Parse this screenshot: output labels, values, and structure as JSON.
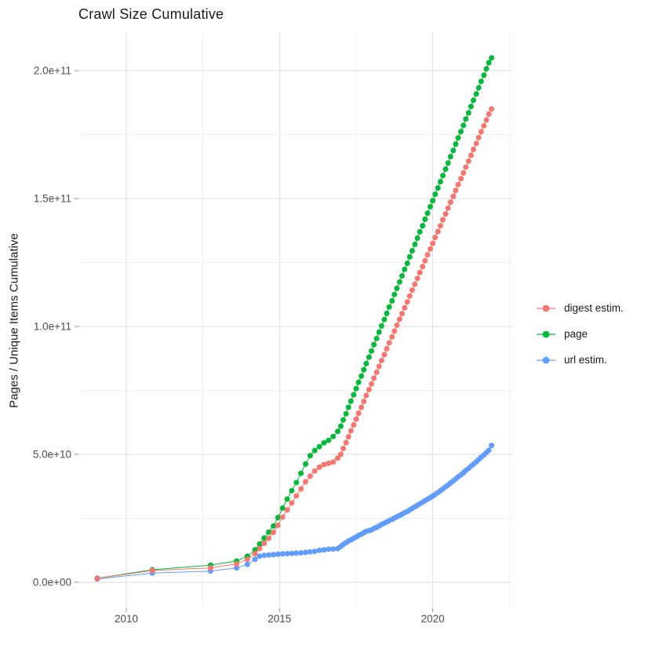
{
  "title": "Crawl Size Cumulative",
  "axes": {
    "y_title": "Pages / Unique Items Cumulative"
  },
  "chart_data": {
    "type": "scatter",
    "title": "Crawl Size Cumulative",
    "xlabel": "",
    "ylabel": "Pages / Unique Items Cumulative",
    "x_unit": "calendar year (decimal)",
    "y_unit": "count (values stored in billions, multiply by 1e9)",
    "xlim": [
      2008.4,
      2022.6
    ],
    "ylim_billions": [
      0,
      215
    ],
    "grid": "white background, light gray major and minor gridlines",
    "legend_position": "right",
    "x_major_ticks": {
      "years": [
        2010,
        2015,
        2020
      ],
      "labels": [
        "2010",
        "2015",
        "2020"
      ]
    },
    "x_minor_years": [
      2012.5,
      2017.5,
      2022.5
    ],
    "y_major_ticks": {
      "billions": [
        0,
        50,
        100,
        150,
        200
      ],
      "labels": [
        "0.0e+00",
        "5.0e+10",
        "1.0e+11",
        "1.5e+11",
        "2.0e+11"
      ]
    },
    "y_minor_billions": [
      25,
      75,
      125,
      175
    ],
    "marker": "filled circle, radius ~3.5px, joined by thin line of same color",
    "series": [
      {
        "name": "digest estim.",
        "color": "#F8766D",
        "points_year_billions": [
          [
            2009.05,
            1.5
          ],
          [
            2010.85,
            4.6
          ],
          [
            2012.75,
            5.6
          ],
          [
            2013.6,
            7.2
          ],
          [
            2013.95,
            9
          ],
          [
            2014.2,
            11.2
          ],
          [
            2014.35,
            13.2
          ],
          [
            2014.5,
            15.2
          ],
          [
            2014.65,
            17.2
          ],
          [
            2014.8,
            19.5
          ],
          [
            2014.95,
            22.3
          ],
          [
            2015.1,
            25.5
          ],
          [
            2015.25,
            28.3
          ],
          [
            2015.4,
            31
          ],
          [
            2015.55,
            33.8
          ],
          [
            2015.7,
            36.5
          ],
          [
            2015.85,
            39.3
          ],
          [
            2016,
            41.5
          ],
          [
            2016.15,
            43.5
          ],
          [
            2016.3,
            45
          ],
          [
            2016.45,
            46
          ],
          [
            2016.6,
            46.5
          ],
          [
            2016.75,
            47
          ],
          [
            2016.9,
            48.5
          ],
          [
            2017,
            50
          ],
          [
            2017.08,
            52.3
          ],
          [
            2017.17,
            54.6
          ],
          [
            2017.25,
            56.9
          ],
          [
            2017.33,
            59.2
          ],
          [
            2017.42,
            61.5
          ],
          [
            2017.5,
            63.8
          ],
          [
            2017.58,
            66.1
          ],
          [
            2017.67,
            68.4
          ],
          [
            2017.75,
            70.7
          ],
          [
            2017.83,
            73
          ],
          [
            2017.92,
            75.3
          ],
          [
            2018,
            77.5
          ],
          [
            2018.08,
            79.8
          ],
          [
            2018.17,
            82.1
          ],
          [
            2018.25,
            84.4
          ],
          [
            2018.33,
            86.7
          ],
          [
            2018.42,
            89
          ],
          [
            2018.5,
            91.3
          ],
          [
            2018.58,
            93.6
          ],
          [
            2018.67,
            95.9
          ],
          [
            2018.75,
            98.2
          ],
          [
            2018.83,
            100.5
          ],
          [
            2018.92,
            102.8
          ],
          [
            2019,
            105
          ],
          [
            2019.08,
            107.3
          ],
          [
            2019.17,
            109.6
          ],
          [
            2019.25,
            111.9
          ],
          [
            2019.33,
            114.2
          ],
          [
            2019.42,
            116.5
          ],
          [
            2019.5,
            118.8
          ],
          [
            2019.58,
            121.1
          ],
          [
            2019.67,
            123.4
          ],
          [
            2019.75,
            125.7
          ],
          [
            2019.83,
            128
          ],
          [
            2019.92,
            130.3
          ],
          [
            2020,
            132.5
          ],
          [
            2020.08,
            134.8
          ],
          [
            2020.17,
            137.1
          ],
          [
            2020.25,
            139.4
          ],
          [
            2020.33,
            141.7
          ],
          [
            2020.42,
            144
          ],
          [
            2020.5,
            146.3
          ],
          [
            2020.58,
            148.6
          ],
          [
            2020.67,
            150.9
          ],
          [
            2020.75,
            153.2
          ],
          [
            2020.83,
            155.5
          ],
          [
            2020.92,
            157.8
          ],
          [
            2021,
            160
          ],
          [
            2021.08,
            162.3
          ],
          [
            2021.17,
            164.6
          ],
          [
            2021.25,
            166.9
          ],
          [
            2021.33,
            169.2
          ],
          [
            2021.42,
            171.5
          ],
          [
            2021.5,
            173.8
          ],
          [
            2021.58,
            176.1
          ],
          [
            2021.67,
            178.4
          ],
          [
            2021.75,
            180.7
          ],
          [
            2021.83,
            183
          ],
          [
            2021.92,
            185
          ]
        ]
      },
      {
        "name": "page",
        "color": "#00BA38",
        "points_year_billions": [
          [
            2009.05,
            1.6
          ],
          [
            2010.85,
            4.9
          ],
          [
            2012.75,
            6.7
          ],
          [
            2013.6,
            8.3
          ],
          [
            2013.95,
            10.2
          ],
          [
            2014.2,
            12.7
          ],
          [
            2014.35,
            15
          ],
          [
            2014.5,
            17.3
          ],
          [
            2014.65,
            19.6
          ],
          [
            2014.8,
            22
          ],
          [
            2014.95,
            25.3
          ],
          [
            2015.1,
            29
          ],
          [
            2015.25,
            32.5
          ],
          [
            2015.4,
            35.8
          ],
          [
            2015.55,
            39
          ],
          [
            2015.7,
            42.6
          ],
          [
            2015.85,
            46.2
          ],
          [
            2016,
            49.5
          ],
          [
            2016.15,
            51.5
          ],
          [
            2016.3,
            53
          ],
          [
            2016.45,
            54.5
          ],
          [
            2016.6,
            55.5
          ],
          [
            2016.75,
            57
          ],
          [
            2016.9,
            59
          ],
          [
            2017,
            61
          ],
          [
            2017.08,
            63.5
          ],
          [
            2017.17,
            65.9
          ],
          [
            2017.25,
            68.4
          ],
          [
            2017.33,
            70.8
          ],
          [
            2017.42,
            73.3
          ],
          [
            2017.5,
            75.7
          ],
          [
            2017.58,
            78.2
          ],
          [
            2017.67,
            80.6
          ],
          [
            2017.75,
            83.1
          ],
          [
            2017.83,
            85.5
          ],
          [
            2017.92,
            88
          ],
          [
            2018,
            90.4
          ],
          [
            2018.08,
            92.9
          ],
          [
            2018.17,
            95.3
          ],
          [
            2018.25,
            97.8
          ],
          [
            2018.33,
            100.2
          ],
          [
            2018.42,
            102.7
          ],
          [
            2018.5,
            105.1
          ],
          [
            2018.58,
            107.6
          ],
          [
            2018.67,
            110
          ],
          [
            2018.75,
            112.5
          ],
          [
            2018.83,
            114.9
          ],
          [
            2018.92,
            117.4
          ],
          [
            2019,
            119.8
          ],
          [
            2019.08,
            122.3
          ],
          [
            2019.17,
            124.7
          ],
          [
            2019.25,
            127.2
          ],
          [
            2019.33,
            129.6
          ],
          [
            2019.42,
            132.1
          ],
          [
            2019.5,
            134.5
          ],
          [
            2019.58,
            137
          ],
          [
            2019.67,
            139.4
          ],
          [
            2019.75,
            141.9
          ],
          [
            2019.83,
            144.3
          ],
          [
            2019.92,
            146.8
          ],
          [
            2020,
            149.2
          ],
          [
            2020.08,
            151.7
          ],
          [
            2020.17,
            154.1
          ],
          [
            2020.25,
            156.6
          ],
          [
            2020.33,
            159
          ],
          [
            2020.42,
            161.5
          ],
          [
            2020.5,
            163.9
          ],
          [
            2020.58,
            166.4
          ],
          [
            2020.67,
            168.8
          ],
          [
            2020.75,
            171.3
          ],
          [
            2020.83,
            173.7
          ],
          [
            2020.92,
            176.2
          ],
          [
            2021,
            178.6
          ],
          [
            2021.08,
            181.1
          ],
          [
            2021.17,
            183.5
          ],
          [
            2021.25,
            186
          ],
          [
            2021.33,
            188.4
          ],
          [
            2021.42,
            190.9
          ],
          [
            2021.5,
            193.3
          ],
          [
            2021.58,
            195.8
          ],
          [
            2021.67,
            198.2
          ],
          [
            2021.75,
            200.7
          ],
          [
            2021.83,
            203.1
          ],
          [
            2021.92,
            205
          ]
        ]
      },
      {
        "name": "url estim.",
        "color": "#619CFF",
        "points_year_billions": [
          [
            2009.05,
            1.3
          ],
          [
            2010.85,
            3.6
          ],
          [
            2012.75,
            4.4
          ],
          [
            2013.6,
            5.6
          ],
          [
            2013.95,
            7
          ],
          [
            2014.2,
            9
          ],
          [
            2014.35,
            10.2
          ],
          [
            2014.5,
            10.5
          ],
          [
            2014.65,
            10.7
          ],
          [
            2014.8,
            10.8
          ],
          [
            2014.95,
            11
          ],
          [
            2015.1,
            11.1
          ],
          [
            2015.25,
            11.2
          ],
          [
            2015.4,
            11.3
          ],
          [
            2015.55,
            11.4
          ],
          [
            2015.7,
            11.5
          ],
          [
            2015.85,
            11.7
          ],
          [
            2016,
            11.9
          ],
          [
            2016.15,
            12.1
          ],
          [
            2016.3,
            12.5
          ],
          [
            2016.45,
            12.7
          ],
          [
            2016.6,
            12.9
          ],
          [
            2016.75,
            13
          ],
          [
            2016.9,
            13.2
          ],
          [
            2017,
            14
          ],
          [
            2017.08,
            14.8
          ],
          [
            2017.17,
            15.5
          ],
          [
            2017.25,
            16.1
          ],
          [
            2017.33,
            16.6
          ],
          [
            2017.42,
            17.2
          ],
          [
            2017.5,
            17.7
          ],
          [
            2017.58,
            18.3
          ],
          [
            2017.67,
            18.8
          ],
          [
            2017.75,
            19.4
          ],
          [
            2017.83,
            19.9
          ],
          [
            2017.92,
            20.2
          ],
          [
            2018,
            20.5
          ],
          [
            2018.08,
            21
          ],
          [
            2018.17,
            21.5
          ],
          [
            2018.25,
            22
          ],
          [
            2018.33,
            22.6
          ],
          [
            2018.42,
            23.1
          ],
          [
            2018.5,
            23.6
          ],
          [
            2018.58,
            24.1
          ],
          [
            2018.67,
            24.6
          ],
          [
            2018.75,
            25.1
          ],
          [
            2018.83,
            25.6
          ],
          [
            2018.92,
            26.1
          ],
          [
            2019,
            26.6
          ],
          [
            2019.08,
            27.2
          ],
          [
            2019.17,
            27.7
          ],
          [
            2019.25,
            28.3
          ],
          [
            2019.33,
            28.9
          ],
          [
            2019.42,
            29.5
          ],
          [
            2019.5,
            30.1
          ],
          [
            2019.58,
            30.7
          ],
          [
            2019.67,
            31.3
          ],
          [
            2019.75,
            31.9
          ],
          [
            2019.83,
            32.5
          ],
          [
            2019.92,
            33.1
          ],
          [
            2020,
            33.7
          ],
          [
            2020.08,
            34.4
          ],
          [
            2020.17,
            35.1
          ],
          [
            2020.25,
            35.8
          ],
          [
            2020.33,
            36.5
          ],
          [
            2020.42,
            37.3
          ],
          [
            2020.5,
            38
          ],
          [
            2020.58,
            38.8
          ],
          [
            2020.67,
            39.6
          ],
          [
            2020.75,
            40.4
          ],
          [
            2020.83,
            41.2
          ],
          [
            2020.92,
            42
          ],
          [
            2021,
            42.8
          ],
          [
            2021.08,
            43.7
          ],
          [
            2021.17,
            44.5
          ],
          [
            2021.25,
            45.4
          ],
          [
            2021.33,
            46.2
          ],
          [
            2021.42,
            47.1
          ],
          [
            2021.5,
            48
          ],
          [
            2021.58,
            48.9
          ],
          [
            2021.67,
            49.8
          ],
          [
            2021.75,
            50.7
          ],
          [
            2021.83,
            51.6
          ],
          [
            2021.92,
            53.5
          ]
        ]
      }
    ],
    "draw_order_series_indices": [
      1,
      2,
      0
    ]
  },
  "legend": {
    "items": [
      {
        "label": "digest estim.",
        "color": "#F8766D"
      },
      {
        "label": "page",
        "color": "#00BA38"
      },
      {
        "label": "url estim.",
        "color": "#619CFF"
      }
    ]
  },
  "colors": {
    "grid_major": "#e3e3e3",
    "grid_minor": "#f0f0f0",
    "tick_mark": "#999999",
    "tick_label": "#4d4d4d",
    "text": "#1a1a1a"
  }
}
